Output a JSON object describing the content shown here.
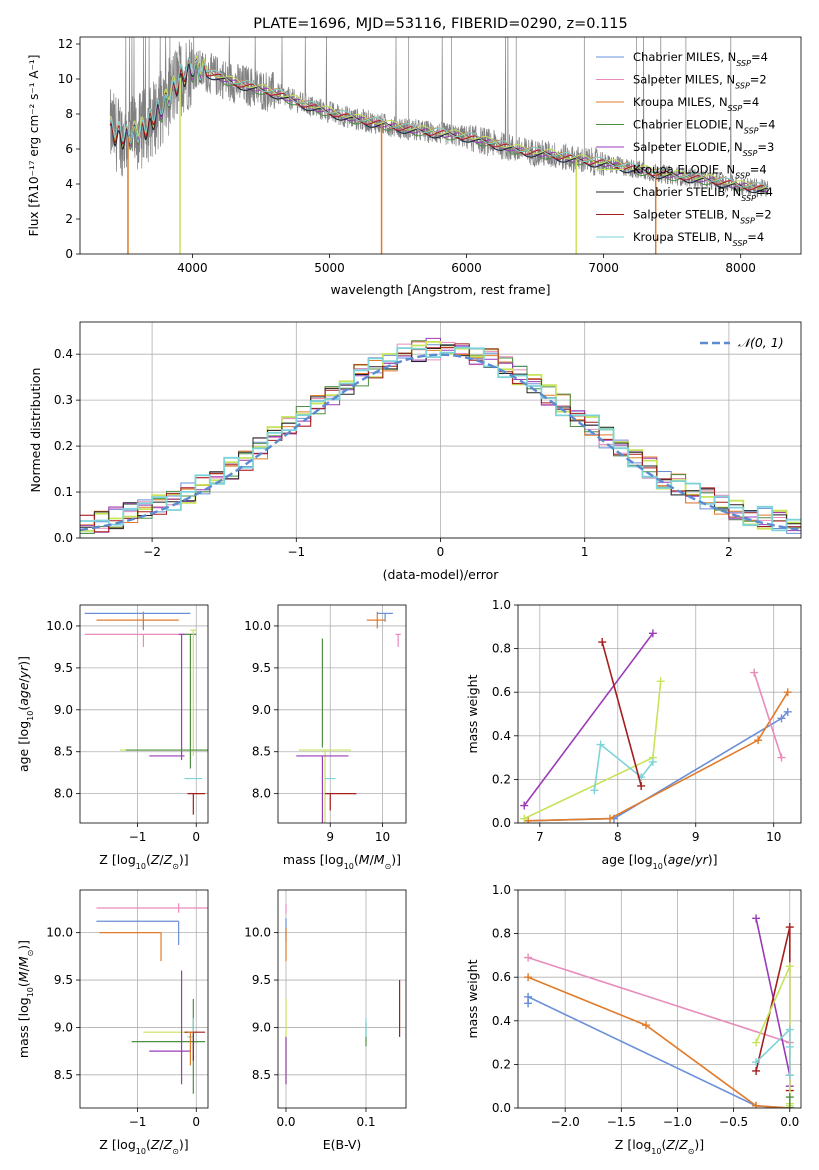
{
  "chart_data": [
    {
      "id": "spectrum",
      "type": "line",
      "title": "PLATE=1696, MJD=53116, FIBERID=0290, z=0.115",
      "xlabel": "wavelength [Angstrom, rest frame]",
      "ylabel": "Flux [fλ10⁻¹⁷ erg cm⁻² s⁻¹ A⁻¹]",
      "xlim": [
        3180,
        8440
      ],
      "ylim": [
        0,
        12.4
      ],
      "xticks": [
        4000,
        5000,
        6000,
        7000,
        8000
      ],
      "yticks": [
        0,
        2,
        4,
        6,
        8,
        10,
        12
      ],
      "grid": false,
      "legend_position": "top-right",
      "continuum": {
        "x": [
          3400,
          3500,
          3600,
          3700,
          3800,
          3900,
          4000,
          4100,
          4200,
          4300,
          4400,
          4500,
          4600,
          4700,
          4800,
          5000,
          5200,
          5400,
          5600,
          5800,
          6000,
          6200,
          6400,
          6600,
          6800,
          7000,
          7200,
          7400,
          7600,
          7800,
          8000,
          8200
        ],
        "y": [
          7.2,
          6.6,
          6.9,
          7.6,
          8.6,
          10.0,
          10.6,
          10.4,
          10.1,
          9.8,
          9.6,
          9.4,
          9.2,
          8.9,
          8.6,
          8.1,
          7.7,
          7.4,
          7.1,
          6.9,
          6.7,
          6.3,
          5.9,
          5.7,
          5.4,
          5.2,
          4.9,
          4.6,
          4.4,
          4.2,
          3.9,
          3.7
        ]
      },
      "observed_series_name": "",
      "observed_color": "#808080",
      "legend": [
        {
          "label": "Chabrier MILES, N",
          "sub": "SSP",
          "n": "=4",
          "color": "#6a8fd8"
        },
        {
          "label": "Salpeter MILES, N",
          "sub": "SSP",
          "n": "=2",
          "color": "#e88bbb"
        },
        {
          "label": "Kroupa MILES, N",
          "sub": "SSP",
          "n": "=4",
          "color": "#e07b2a"
        },
        {
          "label": "Chabrier ELODIE, N",
          "sub": "SSP",
          "n": "=4",
          "color": "#4f8f43"
        },
        {
          "label": "Salpeter ELODIE, N",
          "sub": "SSP",
          "n": "=3",
          "color": "#9a3bb7"
        },
        {
          "label": "Kroupa ELODIE, N",
          "sub": "SSP",
          "n": "=4",
          "color": "#c6e35a"
        },
        {
          "label": "Chabrier STELIB, N",
          "sub": "SSP",
          "n": "=4",
          "color": "#222222"
        },
        {
          "label": "Salpeter STELIB, N",
          "sub": "SSP",
          "n": "=2",
          "color": "#a51d1d"
        },
        {
          "label": "Kroupa STELIB, N",
          "sub": "SSP",
          "n": "=4",
          "color": "#7ed3d9"
        }
      ]
    },
    {
      "id": "residuals",
      "type": "bar",
      "xlabel": "(data-model)/error",
      "ylabel": "Normed distribution",
      "xlim": [
        -2.5,
        2.5
      ],
      "ylim": [
        0,
        0.47
      ],
      "xticks": [
        -2,
        -1,
        0,
        1,
        2
      ],
      "yticks": [
        0.0,
        0.1,
        0.2,
        0.3,
        0.4
      ],
      "grid": true,
      "legend_position": "top-right",
      "reference": {
        "label": "𝒩(0, 1)",
        "color": "#5b8bd0"
      },
      "bin_width": 0.1
    },
    {
      "id": "age_vs_Z",
      "type": "scatter",
      "xlabel": "Z [log₁₀(Z/Z⊙)]",
      "ylabel": "age  [log₁₀(age/yr)]",
      "xlim": [
        -1.98,
        0.2
      ],
      "ylim": [
        7.65,
        10.25
      ],
      "xticks": [
        -1,
        0
      ],
      "yticks": [
        8.0,
        8.5,
        9.0,
        9.5,
        10.0
      ],
      "grid": true,
      "points": [
        {
          "color": "#6a8fd8",
          "x": -0.9,
          "y": 10.15,
          "xerr": [
            1.0,
            0.8
          ],
          "yerr": [
            0.2,
            0.0
          ]
        },
        {
          "color": "#e07b2a",
          "x": -0.9,
          "y": 10.07,
          "xerr": [
            0.8,
            0.6
          ],
          "yerr": [
            0.1,
            0.1
          ]
        },
        {
          "color": "#e88bbb",
          "x": -0.9,
          "y": 9.9,
          "xerr": [
            1.0,
            0.9
          ],
          "yerr": [
            0.15,
            0.0
          ]
        },
        {
          "color": "#4f8f43",
          "x": -0.1,
          "y": 9.9,
          "xerr": [
            0.1,
            0.1
          ],
          "yerr": [
            1.6,
            0.0
          ]
        },
        {
          "color": "#c6e35a",
          "x": -0.05,
          "y": 9.95,
          "xerr": [
            0.05,
            0.05
          ],
          "yerr": [
            1.5,
            0.0
          ]
        },
        {
          "color": "#9a3bb7",
          "x": -0.25,
          "y": 9.9,
          "xerr": [
            0.05,
            0.05
          ],
          "yerr": [
            1.5,
            0.0
          ]
        },
        {
          "color": "#c6e35a",
          "x": -0.5,
          "y": 8.52,
          "xerr": [
            0.8,
            0.7
          ],
          "yerr": [
            0.0,
            0.0
          ]
        },
        {
          "color": "#4f8f43",
          "x": -0.5,
          "y": 8.52,
          "xerr": [
            0.7,
            0.7
          ],
          "yerr": [
            0.0,
            0.0
          ]
        },
        {
          "color": "#9a3bb7",
          "x": -0.4,
          "y": 8.45,
          "xerr": [
            0.4,
            0.2
          ],
          "yerr": [
            0.0,
            0.0
          ]
        },
        {
          "color": "#7ed3d9",
          "x": -0.05,
          "y": 8.18,
          "xerr": [
            0.15,
            0.15
          ],
          "yerr": [
            0.0,
            0.0
          ]
        },
        {
          "color": "#a51d1d",
          "x": -0.05,
          "y": 8.0,
          "xerr": [
            0.1,
            0.2
          ],
          "yerr": [
            0.25,
            0.0
          ]
        }
      ]
    },
    {
      "id": "age_vs_mass",
      "type": "scatter",
      "xlabel": "mass [log₁₀(M/M⊙)]",
      "ylabel": "",
      "xlim": [
        8.0,
        10.45
      ],
      "ylim": [
        7.65,
        10.25
      ],
      "xticks": [
        9,
        10
      ],
      "yticks": [
        8.0,
        8.5,
        9.0,
        9.5,
        10.0
      ],
      "grid": true,
      "points": [
        {
          "color": "#6a8fd8",
          "x": 10.05,
          "y": 10.15,
          "xerr": [
            0.15,
            0.15
          ],
          "yerr": [
            0.1,
            0.0
          ]
        },
        {
          "color": "#e07b2a",
          "x": 9.9,
          "y": 10.07,
          "xerr": [
            0.2,
            0.15
          ],
          "yerr": [
            0.1,
            0.1
          ]
        },
        {
          "color": "#e88bbb",
          "x": 10.3,
          "y": 9.9,
          "xerr": [
            0.05,
            0.05
          ],
          "yerr": [
            0.15,
            0.0
          ]
        },
        {
          "color": "#4f8f43",
          "x": 8.85,
          "y": 9.85,
          "xerr": [
            0.0,
            0.0
          ],
          "yerr": [
            1.3,
            0.0
          ]
        },
        {
          "color": "#c6e35a",
          "x": 8.9,
          "y": 8.52,
          "xerr": [
            0.5,
            0.5
          ],
          "yerr": [
            1.5,
            0.0
          ]
        },
        {
          "color": "#9a3bb7",
          "x": 8.85,
          "y": 8.45,
          "xerr": [
            0.5,
            0.5
          ],
          "yerr": [
            1.5,
            0.0
          ]
        },
        {
          "color": "#7ed3d9",
          "x": 9.0,
          "y": 8.18,
          "xerr": [
            0.1,
            0.1
          ],
          "yerr": [
            0.0,
            0.0
          ]
        },
        {
          "color": "#a51d1d",
          "x": 9.0,
          "y": 8.0,
          "xerr": [
            0.1,
            0.5
          ],
          "yerr": [
            0.2,
            0.0
          ]
        }
      ]
    },
    {
      "id": "mass_weight_vs_age",
      "type": "line",
      "xlabel": "age  [log₁₀(age/yr)]",
      "ylabel": "mass weight",
      "xlim": [
        6.72,
        10.35
      ],
      "ylim": [
        0,
        1.0
      ],
      "xticks": [
        7,
        8,
        9,
        10
      ],
      "yticks": [
        0.0,
        0.2,
        0.4,
        0.6,
        0.8,
        1.0
      ],
      "grid": true,
      "series": [
        {
          "color": "#6a8fd8",
          "x": [
            6.85,
            7.95,
            10.1,
            10.18
          ],
          "y": [
            0.01,
            0.02,
            0.48,
            0.51
          ]
        },
        {
          "color": "#e07b2a",
          "x": [
            6.85,
            7.9,
            9.8,
            10.18
          ],
          "y": [
            0.01,
            0.02,
            0.38,
            0.6
          ]
        },
        {
          "color": "#e88bbb",
          "x": [
            9.75,
            10.1
          ],
          "y": [
            0.69,
            0.3
          ]
        },
        {
          "color": "#9a3bb7",
          "x": [
            6.8,
            8.45
          ],
          "y": [
            0.08,
            0.87
          ]
        },
        {
          "color": "#c6e35a",
          "x": [
            6.8,
            8.45,
            8.55
          ],
          "y": [
            0.02,
            0.3,
            0.65
          ]
        },
        {
          "color": "#7ed3d9",
          "x": [
            7.7,
            7.78,
            8.3,
            8.45
          ],
          "y": [
            0.15,
            0.36,
            0.21,
            0.28
          ]
        },
        {
          "color": "#a51d1d",
          "x": [
            7.8,
            8.3
          ],
          "y": [
            0.83,
            0.17
          ]
        }
      ]
    },
    {
      "id": "mass_vs_Z",
      "type": "scatter",
      "xlabel": "Z [log₁₀(Z/Z⊙)]",
      "ylabel": "mass [log₁₀(M/M⊙)]",
      "xlim": [
        -1.98,
        0.2
      ],
      "ylim": [
        8.15,
        10.45
      ],
      "xticks": [
        -1,
        0
      ],
      "yticks": [
        8.5,
        9.0,
        9.5,
        10.0
      ],
      "grid": true,
      "points": [
        {
          "color": "#e88bbb",
          "x": -0.3,
          "y": 10.26,
          "xerr": [
            1.4,
            0.6
          ],
          "yerr": [
            0.05,
            0.05
          ]
        },
        {
          "color": "#6a8fd8",
          "x": -0.3,
          "y": 10.12,
          "xerr": [
            1.4,
            0.0
          ],
          "yerr": [
            0.25,
            0.0
          ]
        },
        {
          "color": "#e07b2a",
          "x": -0.6,
          "y": 10.0,
          "xerr": [
            1.05,
            0.0
          ],
          "yerr": [
            0.3,
            0.0
          ]
        },
        {
          "color": "#c6e35a",
          "x": -0.4,
          "y": 8.95,
          "xerr": [
            0.5,
            0.35
          ],
          "yerr": [
            0.0,
            0.0
          ]
        },
        {
          "color": "#4f8f43",
          "x": -0.6,
          "y": 8.85,
          "xerr": [
            0.5,
            0.75
          ],
          "yerr": [
            0.0,
            0.0
          ]
        },
        {
          "color": "#9a3bb7",
          "x": -0.3,
          "y": 8.75,
          "xerr": [
            0.5,
            0.2
          ],
          "yerr": [
            0.0,
            0.0
          ]
        },
        {
          "color": "#9a3bb7",
          "x": -0.25,
          "y": 9.0,
          "xerr": [
            0.0,
            0.0
          ],
          "yerr": [
            0.6,
            0.6
          ]
        },
        {
          "color": "#4f8f43",
          "x": -0.05,
          "y": 8.8,
          "xerr": [
            0.0,
            0.0
          ],
          "yerr": [
            0.5,
            0.5
          ]
        },
        {
          "color": "#7ed3d9",
          "x": -0.05,
          "y": 8.9,
          "xerr": [
            0.1,
            0.0
          ],
          "yerr": [
            0.2,
            0.2
          ]
        },
        {
          "color": "#a51d1d",
          "x": -0.05,
          "y": 8.95,
          "xerr": [
            0.15,
            0.2
          ],
          "yerr": [
            0.3,
            0.0
          ]
        },
        {
          "color": "#e07b2a",
          "x": -0.1,
          "y": 8.95,
          "xerr": [
            0.05,
            0.05
          ],
          "yerr": [
            0.35,
            0.0
          ]
        }
      ]
    },
    {
      "id": "mass_vs_ebv",
      "type": "scatter",
      "xlabel": "E(B-V)",
      "ylabel": "",
      "xlim": [
        -0.01,
        0.15
      ],
      "ylim": [
        8.15,
        10.45
      ],
      "xticks": [
        0.0,
        0.1
      ],
      "yticks": [
        8.5,
        9.0,
        9.5,
        10.0
      ],
      "grid": true,
      "points": [
        {
          "color": "#e88bbb",
          "x": 0.0,
          "y": 10.25,
          "xerr": [
            0.0,
            0.0
          ],
          "yerr": [
            0.05,
            0.05
          ]
        },
        {
          "color": "#6a8fd8",
          "x": 0.0,
          "y": 10.1,
          "xerr": [
            0.0,
            0.0
          ],
          "yerr": [
            0.2,
            0.05
          ]
        },
        {
          "color": "#e07b2a",
          "x": 0.0,
          "y": 10.0,
          "xerr": [
            0.0,
            0.0
          ],
          "yerr": [
            0.3,
            0.05
          ]
        },
        {
          "color": "#c6e35a",
          "x": 0.0,
          "y": 9.0,
          "xerr": [
            0.0,
            0.0
          ],
          "yerr": [
            0.6,
            0.3
          ]
        },
        {
          "color": "#9a3bb7",
          "x": 0.0,
          "y": 8.65,
          "xerr": [
            0.0,
            0.0
          ],
          "yerr": [
            0.25,
            0.25
          ]
        },
        {
          "color": "#4f8f43",
          "x": 0.1,
          "y": 8.95,
          "xerr": [
            0.0,
            0.0
          ],
          "yerr": [
            0.15,
            0.1
          ]
        },
        {
          "color": "#7ed3d9",
          "x": 0.1,
          "y": 9.0,
          "xerr": [
            0.0,
            0.0
          ],
          "yerr": [
            0.1,
            0.1
          ]
        },
        {
          "color": "#a51d1d",
          "x": 0.142,
          "y": 9.2,
          "xerr": [
            0.0,
            0.0
          ],
          "yerr": [
            0.3,
            0.3
          ]
        }
      ]
    },
    {
      "id": "mass_weight_vs_Z",
      "type": "line",
      "xlabel": "Z [log₁₀(Z/Z⊙)]",
      "ylabel": "mass weight",
      "xlim": [
        -2.42,
        0.1
      ],
      "ylim": [
        0,
        1.0
      ],
      "xticks": [
        -2.0,
        -1.5,
        -1.0,
        -0.5,
        0.0
      ],
      "yticks": [
        0.0,
        0.2,
        0.4,
        0.6,
        0.8,
        1.0
      ],
      "grid": true,
      "series": [
        {
          "color": "#6a8fd8",
          "x": [
            -2.33,
            -2.33,
            -0.3,
            0.0
          ],
          "y": [
            0.48,
            0.51,
            0.01,
            0.0
          ]
        },
        {
          "color": "#e07b2a",
          "x": [
            -2.33,
            -1.28,
            -0.3,
            0.0
          ],
          "y": [
            0.6,
            0.38,
            0.01,
            0.0
          ]
        },
        {
          "color": "#e88bbb",
          "x": [
            -2.33,
            0.0
          ],
          "y": [
            0.69,
            0.3
          ]
        },
        {
          "color": "#9a3bb7",
          "x": [
            -0.3,
            0.0,
            0.0
          ],
          "y": [
            0.87,
            0.15,
            0.1
          ]
        },
        {
          "color": "#a51d1d",
          "x": [
            -0.3,
            0.0,
            0.0
          ],
          "y": [
            0.17,
            0.83,
            0.08
          ]
        },
        {
          "color": "#c6e35a",
          "x": [
            -0.3,
            0.0,
            0.0,
            0.0
          ],
          "y": [
            0.3,
            0.65,
            0.02,
            0.01
          ]
        },
        {
          "color": "#7ed3d9",
          "x": [
            -0.3,
            0.0,
            0.0,
            0.0
          ],
          "y": [
            0.21,
            0.36,
            0.28,
            0.15
          ]
        },
        {
          "color": "#4f8f43",
          "x": [
            0.0,
            0.0
          ],
          "y": [
            0.05,
            0.0
          ]
        }
      ]
    }
  ]
}
